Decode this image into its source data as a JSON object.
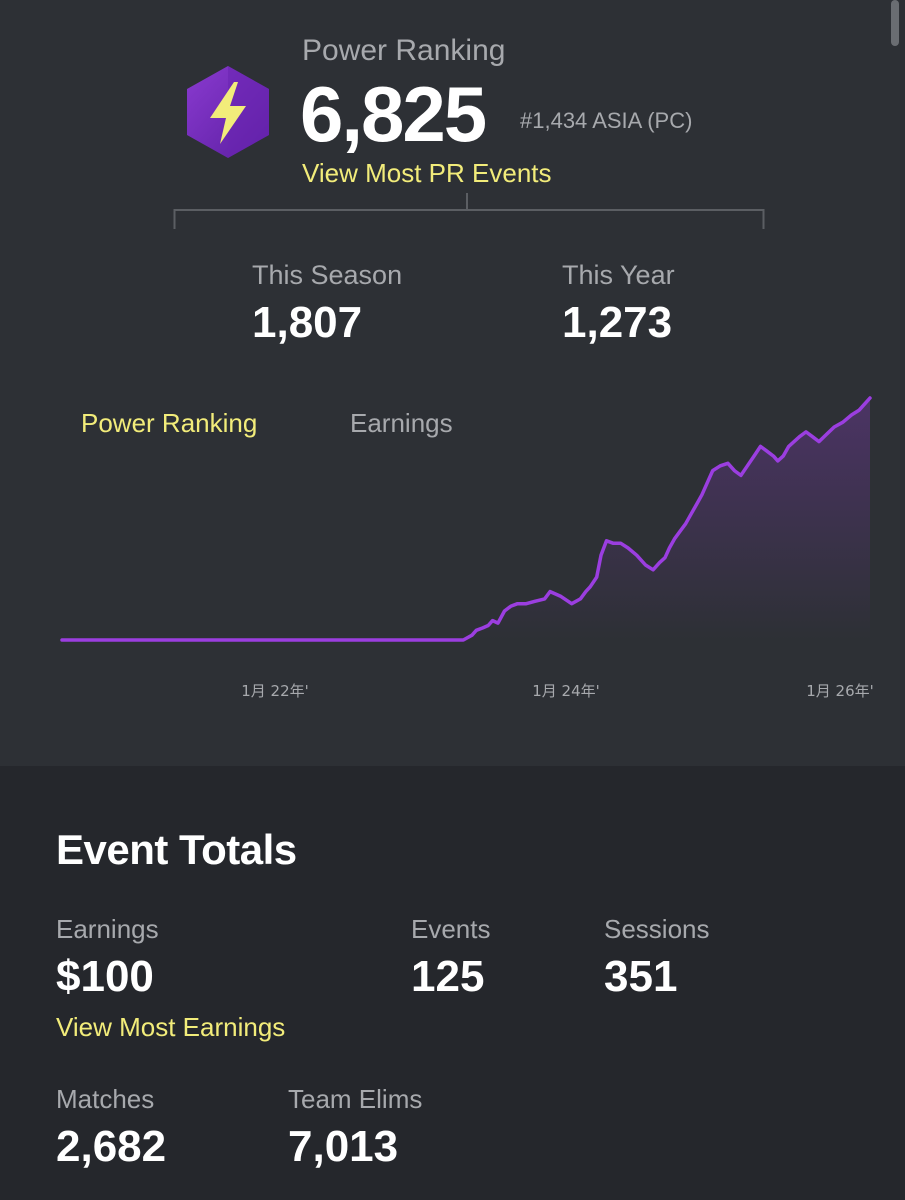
{
  "power_ranking": {
    "label": "Power Ranking",
    "value": "6,825",
    "rank": "#1,434 ASIA (PC)",
    "view_link": "View Most PR Events",
    "badge_icon": "lightning-bolt-icon",
    "badge_color": "#7b2fbf"
  },
  "stats": {
    "season_label": "This Season",
    "season_value": "1,807",
    "year_label": "This Year",
    "year_value": "1,273"
  },
  "tabs": {
    "power_ranking": "Power Ranking",
    "earnings": "Earnings"
  },
  "chart_data": {
    "type": "area",
    "series": [
      {
        "values": [
          [
            0,
            0
          ],
          [
            100,
            0
          ],
          [
            200,
            0
          ],
          [
            300,
            0
          ],
          [
            350,
            0
          ],
          [
            370,
            0
          ],
          [
            378,
            0.02
          ],
          [
            382,
            0.04
          ],
          [
            388,
            0.05
          ],
          [
            393,
            0.06
          ],
          [
            397,
            0.08
          ],
          [
            402,
            0.07
          ],
          [
            408,
            0.12
          ],
          [
            414,
            0.14
          ],
          [
            420,
            0.15
          ],
          [
            428,
            0.15
          ],
          [
            436,
            0.16
          ],
          [
            445,
            0.17
          ],
          [
            450,
            0.2
          ],
          [
            460,
            0.18
          ],
          [
            470,
            0.15
          ],
          [
            478,
            0.17
          ],
          [
            483,
            0.2
          ],
          [
            487,
            0.22
          ],
          [
            493,
            0.26
          ],
          [
            497,
            0.35
          ],
          [
            502,
            0.41
          ],
          [
            508,
            0.4
          ],
          [
            515,
            0.4
          ],
          [
            522,
            0.38
          ],
          [
            530,
            0.35
          ],
          [
            538,
            0.31
          ],
          [
            545,
            0.29
          ],
          [
            551,
            0.32
          ],
          [
            556,
            0.34
          ],
          [
            560,
            0.38
          ],
          [
            565,
            0.42
          ],
          [
            570,
            0.45
          ],
          [
            575,
            0.48
          ],
          [
            580,
            0.52
          ],
          [
            585,
            0.56
          ],
          [
            590,
            0.6
          ],
          [
            595,
            0.65
          ],
          [
            600,
            0.7
          ],
          [
            607,
            0.72
          ],
          [
            614,
            0.73
          ],
          [
            620,
            0.7
          ],
          [
            626,
            0.68
          ],
          [
            632,
            0.72
          ],
          [
            638,
            0.76
          ],
          [
            644,
            0.8
          ],
          [
            650,
            0.78
          ],
          [
            656,
            0.76
          ],
          [
            660,
            0.74
          ],
          [
            665,
            0.76
          ],
          [
            670,
            0.8
          ],
          [
            675,
            0.82
          ],
          [
            680,
            0.84
          ],
          [
            686,
            0.86
          ],
          [
            692,
            0.84
          ],
          [
            698,
            0.82
          ],
          [
            705,
            0.85
          ],
          [
            712,
            0.88
          ],
          [
            720,
            0.9
          ],
          [
            728,
            0.93
          ],
          [
            735,
            0.95
          ],
          [
            741,
            0.98
          ],
          [
            745,
            1.0
          ]
        ]
      }
    ],
    "x_ticks": [
      "1月 22年'",
      "1月 24年'",
      "1月 26年'"
    ],
    "line_color": "#9b3ee0"
  },
  "event_totals": {
    "title": "Event Totals",
    "earnings_label": "Earnings",
    "earnings_value": "$100",
    "events_label": "Events",
    "events_value": "125",
    "sessions_label": "Sessions",
    "sessions_value": "351",
    "view_earnings": "View Most Earnings",
    "matches_label": "Matches",
    "matches_value": "2,682",
    "team_elims_label": "Team Elims",
    "team_elims_value": "7,013"
  }
}
